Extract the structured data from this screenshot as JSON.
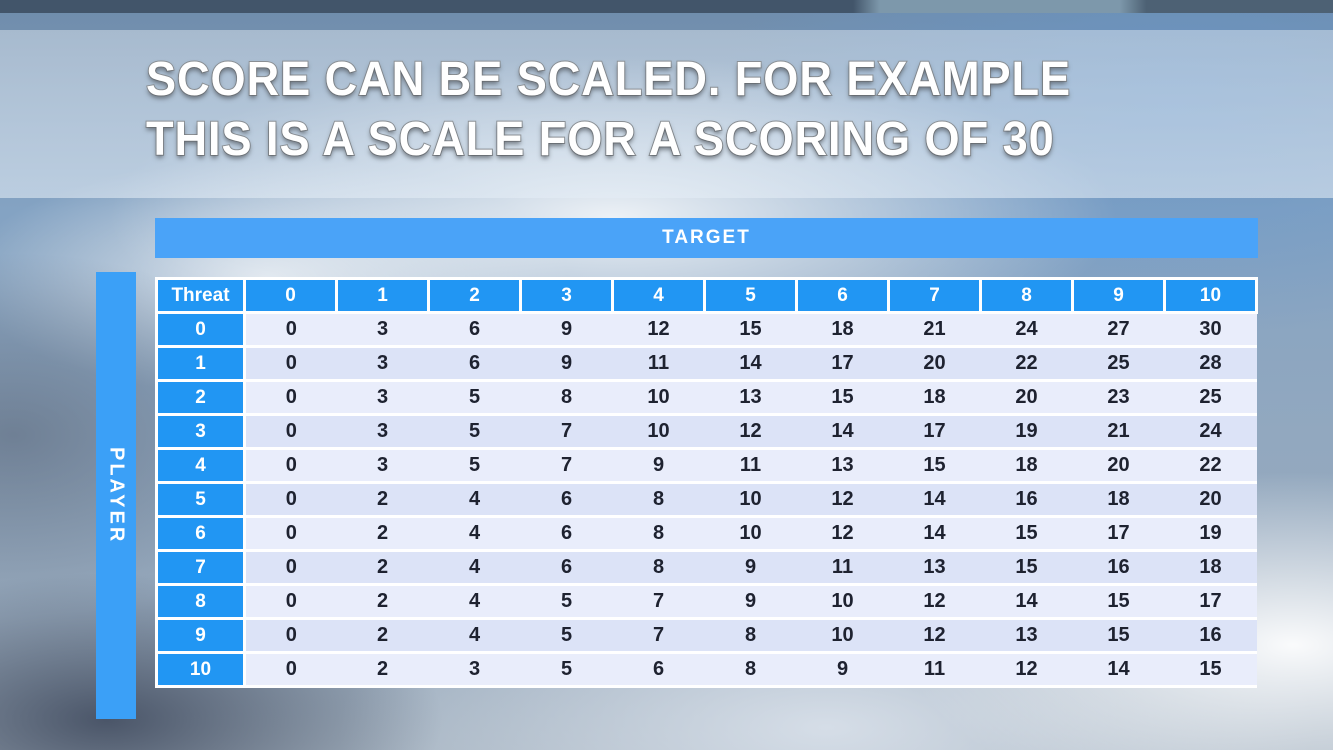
{
  "title": {
    "line1": "SCORE CAN BE SCALED. FOR EXAMPLE",
    "line2": "THIS IS A SCALE FOR A SCORING OF 30"
  },
  "table": {
    "target_label": "TARGET",
    "player_label": "PLAYER",
    "corner_label": "Threat",
    "columns": [
      "0",
      "1",
      "2",
      "3",
      "4",
      "5",
      "6",
      "7",
      "8",
      "9",
      "10"
    ],
    "rows": [
      {
        "threat": "0",
        "values": [
          0,
          3,
          6,
          9,
          12,
          15,
          18,
          21,
          24,
          27,
          30
        ]
      },
      {
        "threat": "1",
        "values": [
          0,
          3,
          6,
          9,
          11,
          14,
          17,
          20,
          22,
          25,
          28
        ]
      },
      {
        "threat": "2",
        "values": [
          0,
          3,
          5,
          8,
          10,
          13,
          15,
          18,
          20,
          23,
          25
        ]
      },
      {
        "threat": "3",
        "values": [
          0,
          3,
          5,
          7,
          10,
          12,
          14,
          17,
          19,
          21,
          24
        ]
      },
      {
        "threat": "4",
        "values": [
          0,
          3,
          5,
          7,
          9,
          11,
          13,
          15,
          18,
          20,
          22
        ]
      },
      {
        "threat": "5",
        "values": [
          0,
          2,
          4,
          6,
          8,
          10,
          12,
          14,
          16,
          18,
          20
        ]
      },
      {
        "threat": "6",
        "values": [
          0,
          2,
          4,
          6,
          8,
          10,
          12,
          14,
          15,
          17,
          19
        ]
      },
      {
        "threat": "7",
        "values": [
          0,
          2,
          4,
          6,
          8,
          9,
          11,
          13,
          15,
          16,
          18
        ]
      },
      {
        "threat": "8",
        "values": [
          0,
          2,
          4,
          5,
          7,
          9,
          10,
          12,
          14,
          15,
          17
        ]
      },
      {
        "threat": "9",
        "values": [
          0,
          2,
          4,
          5,
          7,
          8,
          10,
          12,
          13,
          15,
          16
        ]
      },
      {
        "threat": "10",
        "values": [
          0,
          2,
          3,
          5,
          6,
          8,
          9,
          11,
          12,
          14,
          15
        ]
      }
    ]
  },
  "colors": {
    "header_blue": "#2196f3",
    "band_blue": "#4aa3f8",
    "row_light": "#e9edfb",
    "row_dark": "#dce3f7",
    "cell_text": "#1e2230",
    "title_text": "#ffffff"
  }
}
